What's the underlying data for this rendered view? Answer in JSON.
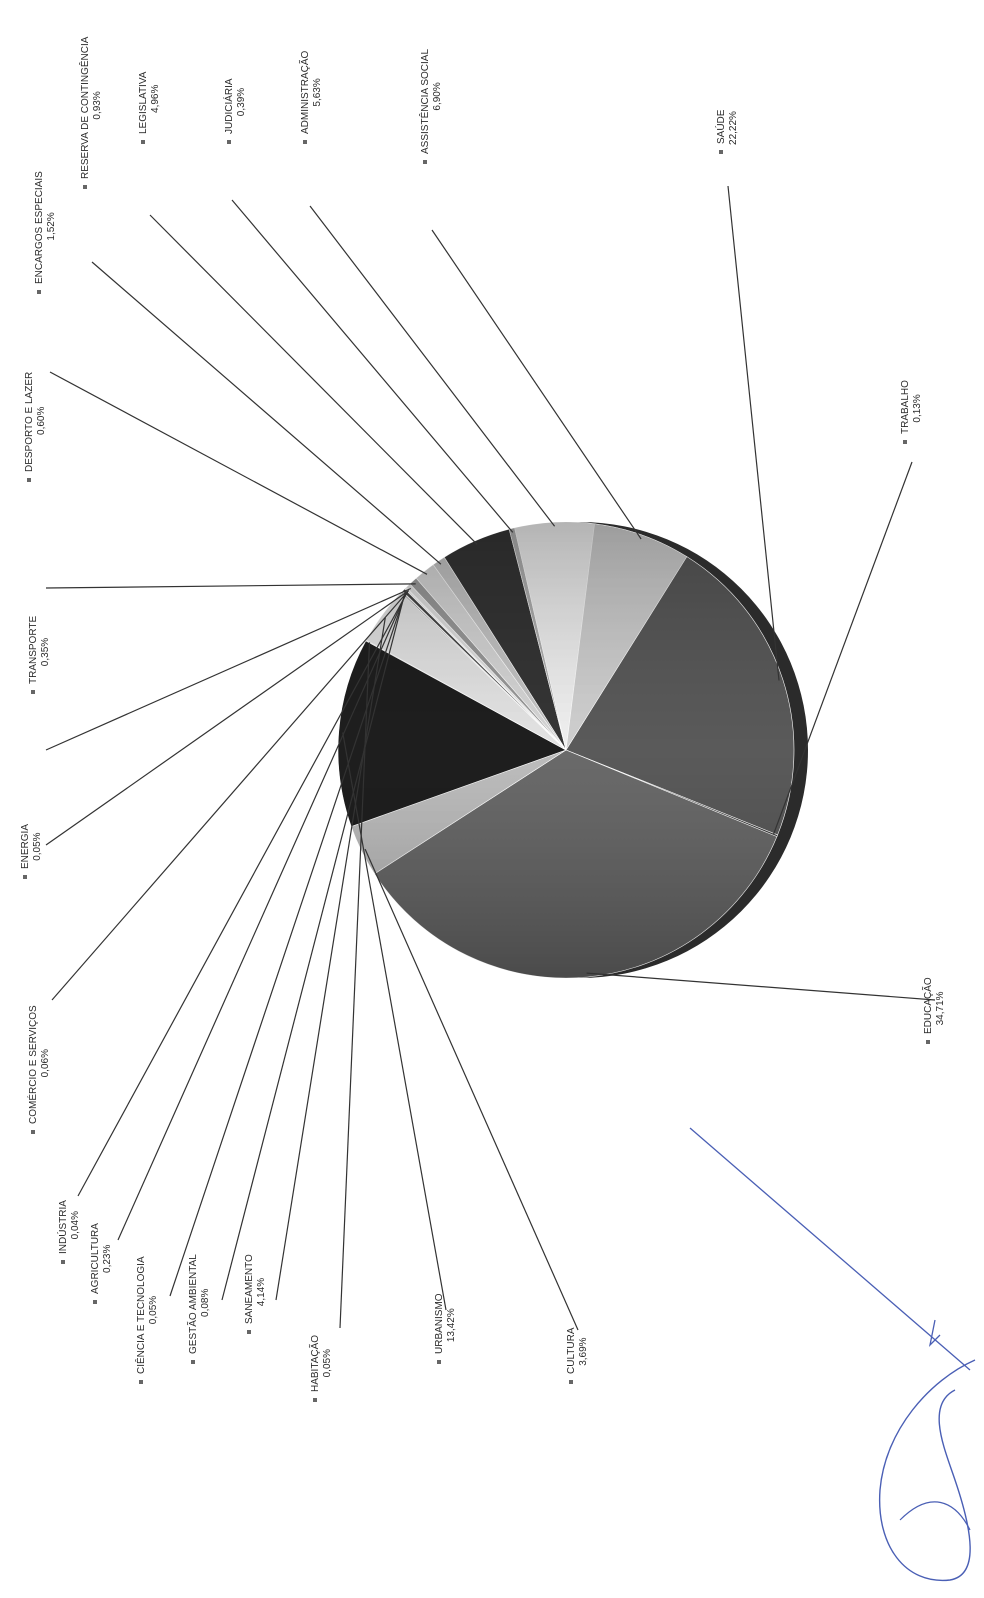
{
  "chart_data": {
    "type": "pie",
    "title": "",
    "slices": [
      {
        "label": "SAÚDE",
        "value_label": "22,22%",
        "value": 22.22,
        "color": "#5a5a5a"
      },
      {
        "label": "TRABALHO",
        "value_label": "0,13%",
        "value": 0.13,
        "color": "#3a3a3a"
      },
      {
        "label": "EDUCAÇÃO",
        "value_label": "34,71%",
        "value": 34.71,
        "color": "#6a6a6a"
      },
      {
        "label": "CULTURA",
        "value_label": "3,69%",
        "value": 3.69,
        "color": "#bdbdbd"
      },
      {
        "label": "URBANISMO",
        "value_label": "13,42%",
        "value": 13.42,
        "color": "#1e1e1e"
      },
      {
        "label": "HABITAÇÃO",
        "value_label": "0,05%",
        "value": 0.05,
        "color": "#8a8a8a"
      },
      {
        "label": "SANEAMENTO",
        "value_label": "4,14%",
        "value": 4.14,
        "color": "#e4e4e4"
      },
      {
        "label": "GESTÃO AMBIENTAL",
        "value_label": "0,08%",
        "value": 0.08,
        "color": "#555555"
      },
      {
        "label": "CIÊNCIA E TECNOLOGIA",
        "value_label": "0,05%",
        "value": 0.05,
        "color": "#999999"
      },
      {
        "label": "AGRICULTURA",
        "value_label": "0,23%",
        "value": 0.23,
        "color": "#444444"
      },
      {
        "label": "INDÚSTRIA",
        "value_label": "0,04%",
        "value": 0.04,
        "color": "#777777"
      },
      {
        "label": "COMÉRCIO E SERVIÇOS",
        "value_label": "0,06%",
        "value": 0.06,
        "color": "#aaaaaa"
      },
      {
        "label": "ENERGIA",
        "value_label": "0,05%",
        "value": 0.05,
        "color": "#cfcfcf"
      },
      {
        "label": "TRANSPORTE",
        "value_label": "0,35%",
        "value": 0.35,
        "color": "#e0e0e0"
      },
      {
        "label": "DESPORTO E LAZER",
        "value_label": "0,60%",
        "value": 0.6,
        "color": "#9a9a9a"
      },
      {
        "label": "ENCARGOS ESPECIAIS",
        "value_label": "1,52%",
        "value": 1.52,
        "color": "#d6d6d6"
      },
      {
        "label": "RESERVA DE CONTINGÊNCIA",
        "value_label": "0,93%",
        "value": 0.93,
        "color": "#c4c4c4"
      },
      {
        "label": "LEGISLATIVA",
        "value_label": "4,96%",
        "value": 4.96,
        "color": "#353535"
      },
      {
        "label": "JUDICIÁRIA",
        "value_label": "0,39%",
        "value": 0.39,
        "color": "#b0b0b0"
      },
      {
        "label": "ADMINISTRAÇÃO",
        "value_label": "5,63%",
        "value": 5.63,
        "color": "#f0f0f0"
      },
      {
        "label": "ASSISTÊNCIA SOCIAL",
        "value_label": "6,90%",
        "value": 6.9,
        "color": "#d0d0d0"
      }
    ],
    "legend_placement": "none",
    "grid": false
  }
}
